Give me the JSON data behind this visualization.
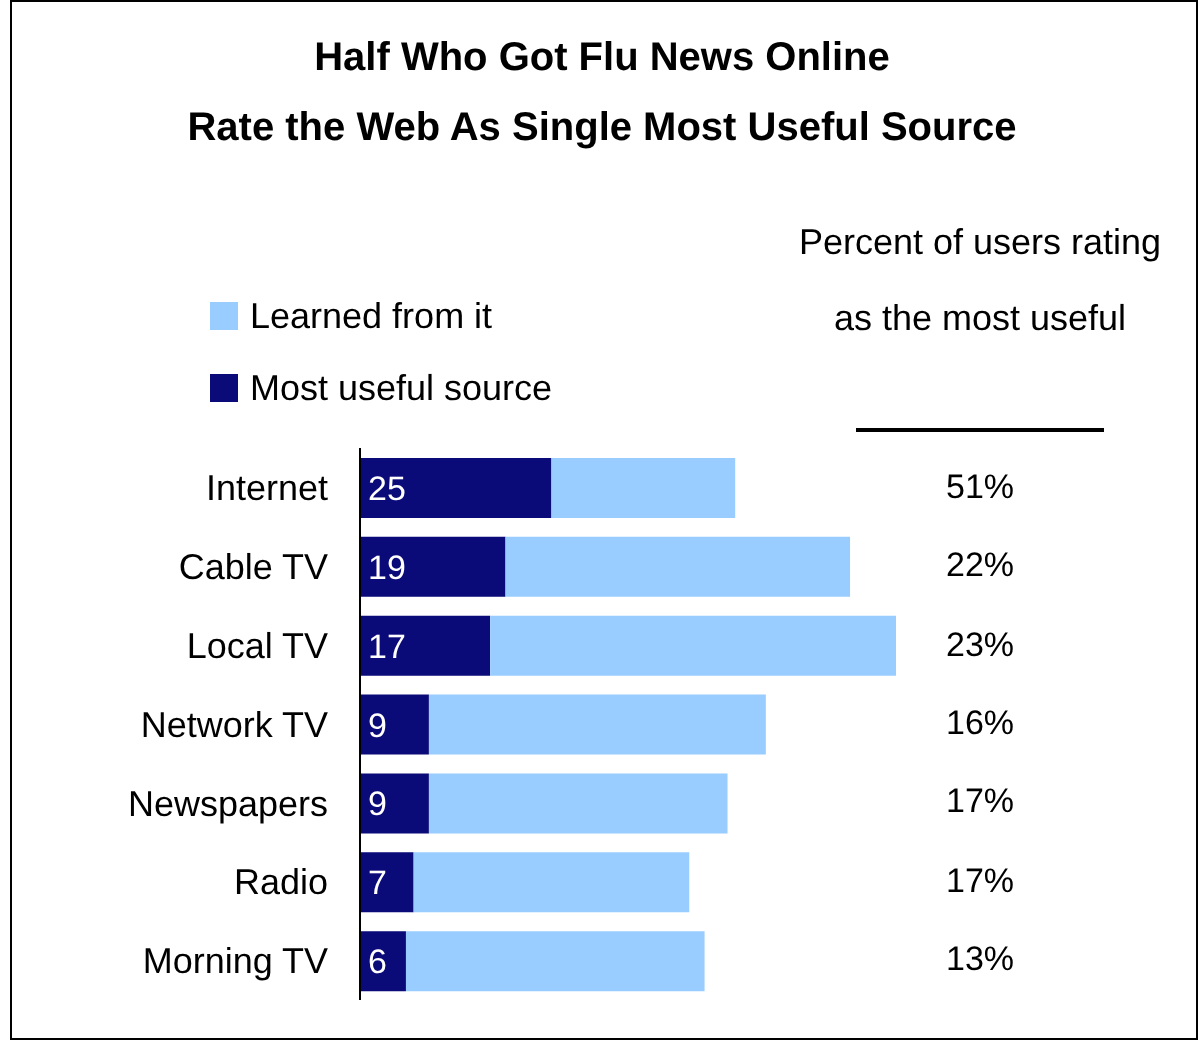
{
  "chart_data": {
    "type": "bar",
    "orientation": "horizontal",
    "stacked": true,
    "title": "Half Who Got Flu News Online\nRate the Web As Single Most Useful Source",
    "categories": [
      "Internet",
      "Cable TV",
      "Local TV",
      "Network TV",
      "Newspapers",
      "Radio",
      "Morning TV"
    ],
    "series": [
      {
        "name": "Most useful source",
        "color": "#0a0a78",
        "values": [
          25,
          19,
          17,
          9,
          9,
          7,
          6
        ],
        "value_labels": [
          "25",
          "19",
          "17",
          "9",
          "9",
          "7",
          "6"
        ]
      },
      {
        "name": "Learned from it",
        "color": "#99ccff",
        "values": [
          24,
          45,
          53,
          44,
          39,
          36,
          39
        ]
      }
    ],
    "legend": "top left",
    "annotations": [
      "Percent of users rating as the most useful",
      "51%",
      "22%",
      "23%",
      "16%",
      "17%",
      "17%",
      "13%"
    ]
  }
}
